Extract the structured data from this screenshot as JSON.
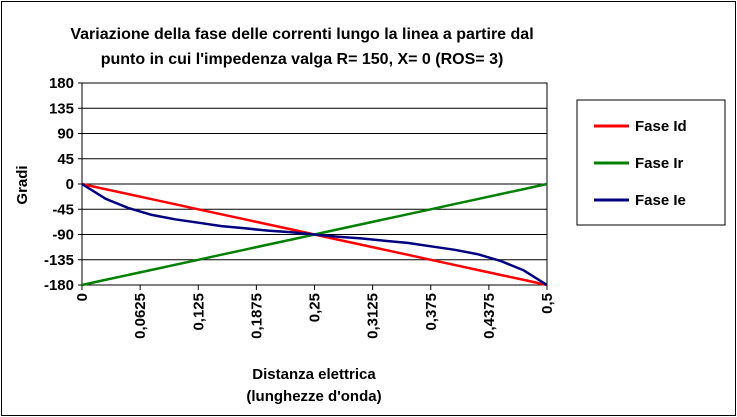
{
  "chart_data": {
    "type": "line",
    "title_lines": [
      "Variazione della fase delle correnti lungo la linea a partire dal",
      "punto in cui l'impedenza valga R= 150, X= 0 (ROS= 3)"
    ],
    "xlabel_lines": [
      "Distanza elettrica",
      "(lunghezze d'onda)"
    ],
    "ylabel": "Gradi",
    "xlim": [
      0,
      0.5
    ],
    "ylim": [
      -180,
      180
    ],
    "x_ticks": [
      "0",
      "0,0625",
      "0,125",
      "0,1875",
      "0,25",
      "0,3125",
      "0,375",
      "0,4375",
      "0,5"
    ],
    "y_ticks": [
      "180",
      "135",
      "90",
      "45",
      "0",
      "-45",
      "-90",
      "-135",
      "-180"
    ],
    "x_tick_values": [
      0,
      0.0625,
      0.125,
      0.1875,
      0.25,
      0.3125,
      0.375,
      0.4375,
      0.5
    ],
    "y_tick_values": [
      180,
      135,
      90,
      45,
      0,
      -45,
      -90,
      -135,
      -180
    ],
    "grid": "horizontal",
    "legend_position": "right",
    "x": [
      0,
      0.025,
      0.05,
      0.075,
      0.1,
      0.125,
      0.15,
      0.175,
      0.2,
      0.225,
      0.25,
      0.275,
      0.3,
      0.325,
      0.35,
      0.375,
      0.4,
      0.425,
      0.45,
      0.475,
      0.5
    ],
    "series": [
      {
        "name": "Fase Id",
        "color": "#ff0000",
        "values": [
          0,
          -9,
          -18,
          -27,
          -36,
          -45,
          -54,
          -63,
          -72,
          -81,
          -90,
          -99,
          -108,
          -117,
          -126,
          -135,
          -144,
          -153,
          -162,
          -171,
          -180
        ]
      },
      {
        "name": "Fase Ir",
        "color": "#008000",
        "values": [
          -180,
          -171,
          -162,
          -153,
          -144,
          -135,
          -126,
          -117,
          -108,
          -99,
          -90,
          -81,
          -72,
          -63,
          -54,
          -45,
          -36,
          -27,
          -18,
          -9,
          0
        ]
      },
      {
        "name": "Fase Ie",
        "color": "#000080",
        "values": [
          0,
          -26,
          -43,
          -55,
          -63,
          -69,
          -75,
          -79,
          -83,
          -86,
          -90,
          -94,
          -97,
          -101,
          -105,
          -111,
          -117,
          -125,
          -137,
          -154,
          -180
        ]
      }
    ]
  }
}
